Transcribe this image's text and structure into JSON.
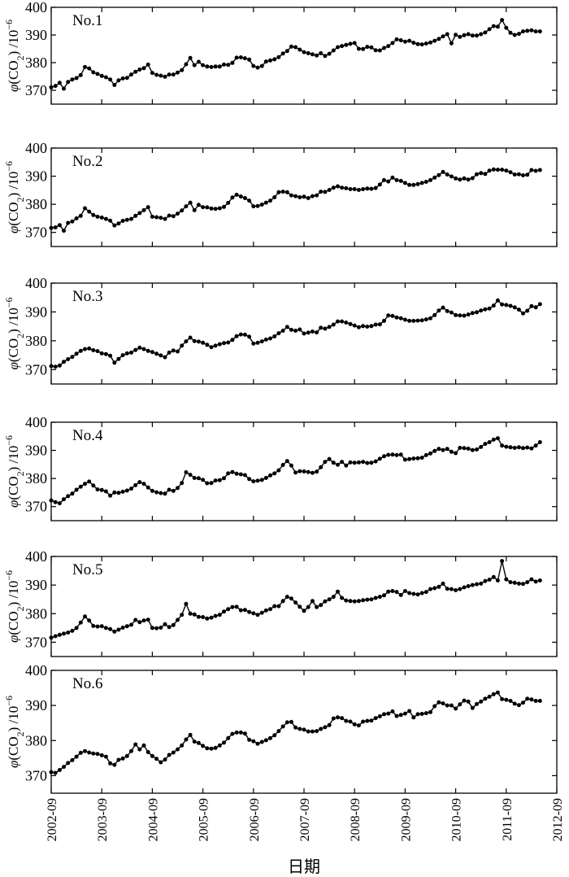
{
  "chart_data": {
    "type": "line",
    "x_axis": {
      "label": "日期",
      "ticks": [
        "2002-09",
        "2003-09",
        "2004-09",
        "2005-09",
        "2006-09",
        "2007-09",
        "2008-09",
        "2009-09",
        "2010-09",
        "2011-09",
        "2012-09"
      ],
      "range": [
        "2002-09",
        "2012-09"
      ]
    },
    "y_axis": {
      "label_prefix": "φ",
      "label_species": "(CO",
      "label_sub": "2",
      "label_close": ")",
      "label_unit": "/10",
      "label_exp": "−6",
      "ticks": [
        370,
        380,
        390,
        400
      ],
      "ylim": [
        365,
        400
      ]
    },
    "x_range_points": {
      "start": "2002-09",
      "end": "2012-05"
    },
    "panels": [
      {
        "name": "No.1",
        "values": [
          371.1,
          371.6,
          372.7,
          370.6,
          373.0,
          373.9,
          374.4,
          375.5,
          378.4,
          377.9,
          376.5,
          375.9,
          375.2,
          374.7,
          373.9,
          371.9,
          373.6,
          374.3,
          374.5,
          375.7,
          376.7,
          377.5,
          378.0,
          379.3,
          376.3,
          375.6,
          375.3,
          374.9,
          375.7,
          375.7,
          376.4,
          377.3,
          379.4,
          381.7,
          379.1,
          380.3,
          379.1,
          378.6,
          378.4,
          378.6,
          378.6,
          379.3,
          379.2,
          379.9,
          381.8,
          381.9,
          381.6,
          381.1,
          378.8,
          378.2,
          378.8,
          380.4,
          380.8,
          381.2,
          382.0,
          383.3,
          384.2,
          385.8,
          385.6,
          384.7,
          383.8,
          383.4,
          383.0,
          382.6,
          383.4,
          382.4,
          383.2,
          384.4,
          385.6,
          386.0,
          386.4,
          386.8,
          387.1,
          385.0,
          384.9,
          385.7,
          385.5,
          384.5,
          384.4,
          385.3,
          386.0,
          387.1,
          388.4,
          388.1,
          387.6,
          387.9,
          387.2,
          386.7,
          386.6,
          386.9,
          387.3,
          387.9,
          388.6,
          389.5,
          390.3,
          387.0,
          390.1,
          389.3,
          389.9,
          390.3,
          389.8,
          389.8,
          390.3,
          390.9,
          392.1,
          393.2,
          393.0,
          395.4,
          392.6,
          390.8,
          390.0,
          390.4,
          391.3,
          391.5,
          391.7,
          391.3,
          391.3
        ]
      },
      {
        "name": "No.2",
        "values": [
          371.6,
          371.8,
          372.6,
          370.6,
          373.4,
          373.9,
          375.0,
          375.9,
          378.6,
          377.4,
          376.2,
          375.6,
          375.3,
          374.8,
          374.2,
          372.5,
          373.2,
          374.1,
          374.5,
          374.8,
          375.9,
          376.9,
          377.9,
          379.0,
          375.6,
          375.4,
          375.2,
          374.8,
          376.0,
          375.8,
          376.7,
          377.8,
          379.3,
          380.6,
          377.9,
          379.8,
          379.0,
          378.9,
          378.5,
          378.4,
          378.6,
          379.1,
          380.5,
          382.4,
          383.4,
          382.8,
          382.2,
          381.3,
          379.3,
          379.4,
          379.9,
          380.6,
          381.3,
          382.5,
          384.3,
          384.5,
          384.3,
          383.2,
          382.9,
          382.5,
          382.7,
          382.2,
          382.9,
          383.2,
          384.5,
          384.4,
          385.1,
          385.9,
          386.4,
          385.9,
          385.7,
          385.4,
          385.4,
          385.1,
          385.4,
          385.6,
          385.5,
          385.8,
          387.0,
          388.6,
          388.1,
          389.5,
          388.6,
          388.3,
          387.6,
          386.9,
          386.9,
          387.2,
          387.6,
          388.0,
          388.6,
          389.5,
          390.4,
          391.5,
          390.6,
          389.9,
          389.2,
          388.8,
          389.2,
          388.8,
          389.3,
          390.7,
          391.1,
          390.8,
          392.0,
          392.4,
          392.3,
          392.3,
          392.0,
          391.4,
          390.6,
          390.7,
          390.3,
          390.5,
          392.2,
          391.9,
          392.2
        ]
      },
      {
        "name": "No.3",
        "values": [
          371.2,
          371.0,
          371.4,
          372.7,
          373.6,
          374.4,
          375.5,
          376.5,
          377.1,
          377.3,
          376.7,
          376.4,
          375.6,
          375.4,
          374.8,
          372.4,
          373.7,
          375.0,
          375.6,
          375.9,
          376.8,
          377.6,
          377.1,
          376.5,
          376.1,
          375.5,
          374.9,
          374.3,
          375.9,
          376.6,
          376.3,
          378.3,
          379.8,
          381.1,
          379.9,
          379.7,
          379.3,
          378.6,
          377.8,
          378.3,
          378.8,
          379.2,
          379.4,
          380.3,
          381.6,
          382.2,
          382.1,
          381.4,
          379.0,
          379.3,
          379.8,
          380.4,
          380.8,
          381.5,
          382.6,
          383.5,
          384.8,
          383.8,
          383.5,
          383.9,
          382.5,
          382.8,
          383.2,
          382.9,
          384.5,
          384.2,
          384.8,
          385.6,
          386.7,
          386.7,
          386.3,
          385.8,
          385.3,
          384.7,
          385.1,
          384.9,
          385.1,
          385.6,
          385.7,
          386.9,
          388.8,
          388.6,
          388.1,
          387.8,
          387.3,
          386.9,
          386.9,
          387.0,
          387.1,
          387.4,
          387.8,
          388.9,
          390.5,
          391.5,
          390.3,
          389.8,
          388.9,
          388.8,
          388.7,
          389.1,
          389.6,
          389.9,
          390.5,
          390.9,
          391.2,
          392.2,
          394.0,
          392.6,
          392.4,
          392.1,
          391.6,
          390.8,
          389.5,
          390.4,
          392.0,
          391.6,
          392.7
        ]
      },
      {
        "name": "No.4",
        "values": [
          372.2,
          371.6,
          371.2,
          372.6,
          373.7,
          374.6,
          376.0,
          377.1,
          378.1,
          378.9,
          377.5,
          376.1,
          375.9,
          375.4,
          373.9,
          375.0,
          374.9,
          375.3,
          375.7,
          376.4,
          377.6,
          378.7,
          378.1,
          376.8,
          375.6,
          375.1,
          374.8,
          374.6,
          376.0,
          375.6,
          376.6,
          378.4,
          382.2,
          381.3,
          380.2,
          380.1,
          379.5,
          378.3,
          378.4,
          379.3,
          379.4,
          380.1,
          381.8,
          382.3,
          381.7,
          381.5,
          381.2,
          379.8,
          379.0,
          379.2,
          379.5,
          380.2,
          381.1,
          381.8,
          382.9,
          384.8,
          386.2,
          384.6,
          382.1,
          382.6,
          382.5,
          382.3,
          382.0,
          382.4,
          384.0,
          385.9,
          386.9,
          385.6,
          384.9,
          385.9,
          384.6,
          385.7,
          385.6,
          385.7,
          385.9,
          385.5,
          385.6,
          386.1,
          387.0,
          387.9,
          388.4,
          388.5,
          388.3,
          388.5,
          386.7,
          386.9,
          387.1,
          387.2,
          387.4,
          388.3,
          388.9,
          389.8,
          390.5,
          390.1,
          390.5,
          389.5,
          389.0,
          390.9,
          390.8,
          390.6,
          390.1,
          390.3,
          391.2,
          392.3,
          392.9,
          393.8,
          394.3,
          391.7,
          391.3,
          391.1,
          390.9,
          391.1,
          390.8,
          391.0,
          390.7,
          391.7,
          392.9
        ]
      },
      {
        "name": "No.5",
        "values": [
          371.6,
          372.1,
          372.6,
          373.0,
          373.4,
          374.0,
          375.0,
          376.9,
          379.0,
          377.6,
          375.7,
          375.5,
          375.6,
          375.0,
          374.6,
          373.7,
          374.4,
          375.1,
          375.6,
          376.1,
          377.8,
          377.0,
          377.6,
          377.9,
          375.0,
          374.9,
          375.1,
          376.3,
          375.3,
          376.0,
          377.8,
          379.6,
          383.4,
          380.0,
          379.7,
          378.9,
          378.8,
          378.3,
          378.6,
          379.2,
          379.6,
          380.7,
          381.6,
          382.3,
          382.4,
          381.2,
          381.3,
          380.6,
          380.1,
          379.6,
          380.3,
          381.1,
          381.6,
          382.6,
          382.6,
          384.4,
          385.9,
          385.3,
          383.9,
          382.4,
          381.0,
          382.3,
          384.4,
          382.3,
          383.0,
          384.3,
          385.0,
          385.9,
          387.7,
          385.5,
          384.6,
          384.4,
          384.3,
          384.4,
          384.7,
          384.9,
          385.0,
          385.5,
          385.9,
          386.4,
          387.7,
          387.9,
          387.6,
          386.5,
          387.9,
          387.2,
          386.9,
          386.7,
          387.2,
          387.6,
          388.6,
          388.9,
          389.4,
          390.5,
          388.7,
          388.6,
          388.2,
          388.6,
          389.2,
          389.6,
          390.0,
          390.3,
          390.5,
          391.4,
          391.9,
          392.8,
          391.6,
          398.4,
          392.0,
          391.0,
          390.8,
          390.5,
          390.4,
          391.0,
          392.0,
          391.2,
          391.6
        ]
      },
      {
        "name": "No.6",
        "values": [
          371.0,
          370.8,
          371.6,
          372.5,
          373.6,
          374.4,
          375.4,
          376.5,
          377.0,
          376.6,
          376.3,
          376.2,
          375.8,
          375.4,
          373.5,
          373.1,
          374.5,
          374.9,
          375.6,
          377.0,
          378.9,
          377.5,
          378.6,
          376.7,
          375.6,
          374.8,
          373.8,
          374.6,
          375.9,
          376.6,
          377.5,
          378.6,
          380.3,
          381.6,
          379.7,
          379.3,
          378.5,
          377.8,
          377.7,
          377.9,
          378.6,
          379.4,
          380.7,
          381.9,
          382.3,
          382.3,
          382.0,
          380.2,
          379.8,
          379.1,
          379.6,
          380.1,
          380.7,
          381.5,
          382.7,
          384.0,
          385.2,
          385.3,
          383.7,
          383.3,
          383.1,
          382.6,
          382.6,
          382.7,
          383.3,
          383.8,
          384.4,
          386.3,
          386.6,
          386.4,
          385.6,
          385.4,
          384.6,
          384.3,
          385.4,
          385.6,
          385.7,
          386.4,
          386.9,
          387.5,
          387.7,
          388.3,
          387.0,
          387.3,
          387.7,
          388.4,
          386.6,
          387.5,
          387.6,
          387.8,
          388.1,
          389.8,
          390.9,
          390.6,
          390.0,
          390.0,
          389.1,
          390.3,
          391.4,
          391.1,
          389.3,
          390.4,
          391.1,
          391.9,
          392.5,
          393.2,
          393.7,
          391.8,
          391.6,
          391.3,
          390.5,
          390.1,
          390.8,
          391.9,
          391.7,
          391.3,
          391.3
        ]
      }
    ]
  }
}
